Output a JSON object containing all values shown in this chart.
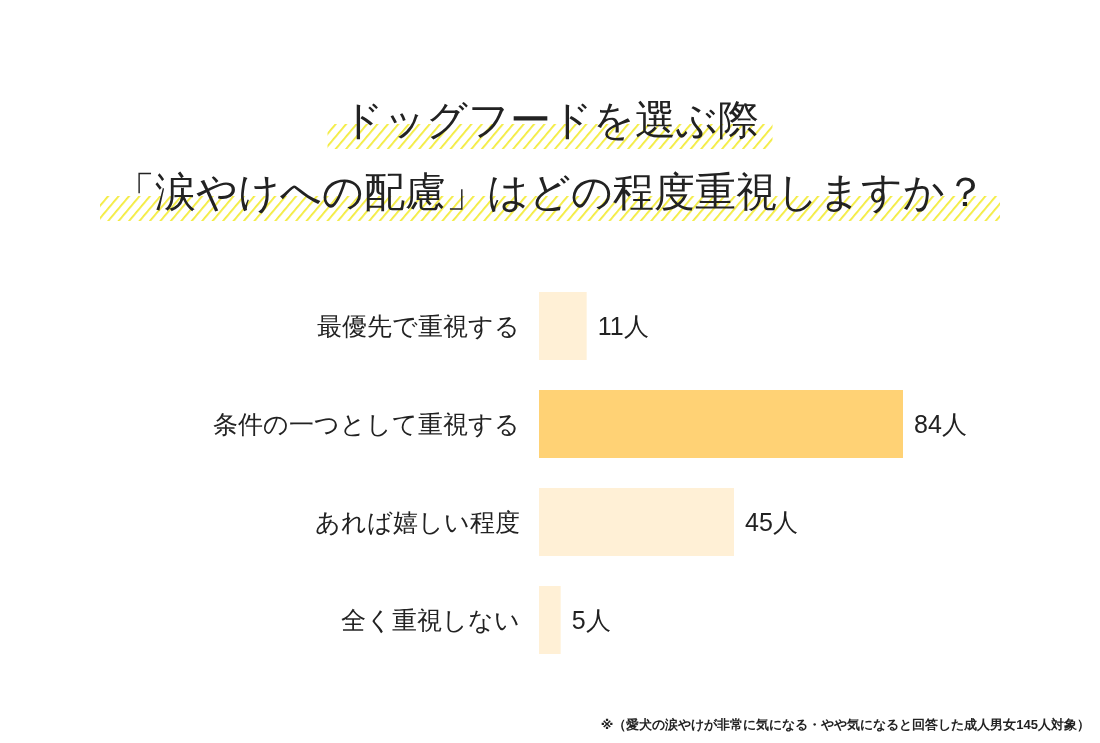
{
  "chart_data": {
    "type": "bar",
    "orientation": "horizontal",
    "title": "ドッグフードを選ぶ際",
    "subtitle": "「涙やけへの配慮」はどの程度重視しますか？",
    "categories": [
      "最優先で重視する",
      "条件の一つとして重視する",
      "あれば嬉しい程度",
      "全く重視しない"
    ],
    "values": [
      11,
      84,
      45,
      5
    ],
    "colors": [
      "#fff0d6",
      "#ffd275",
      "#fff0d6",
      "#fff0d6"
    ],
    "value_labels": [
      "11人",
      "84人",
      "45人",
      "5人"
    ],
    "annotations": [
      "※（愛犬の涙やけが非常に気になる・やや気になると回答した成人男女145人対象）"
    ]
  }
}
